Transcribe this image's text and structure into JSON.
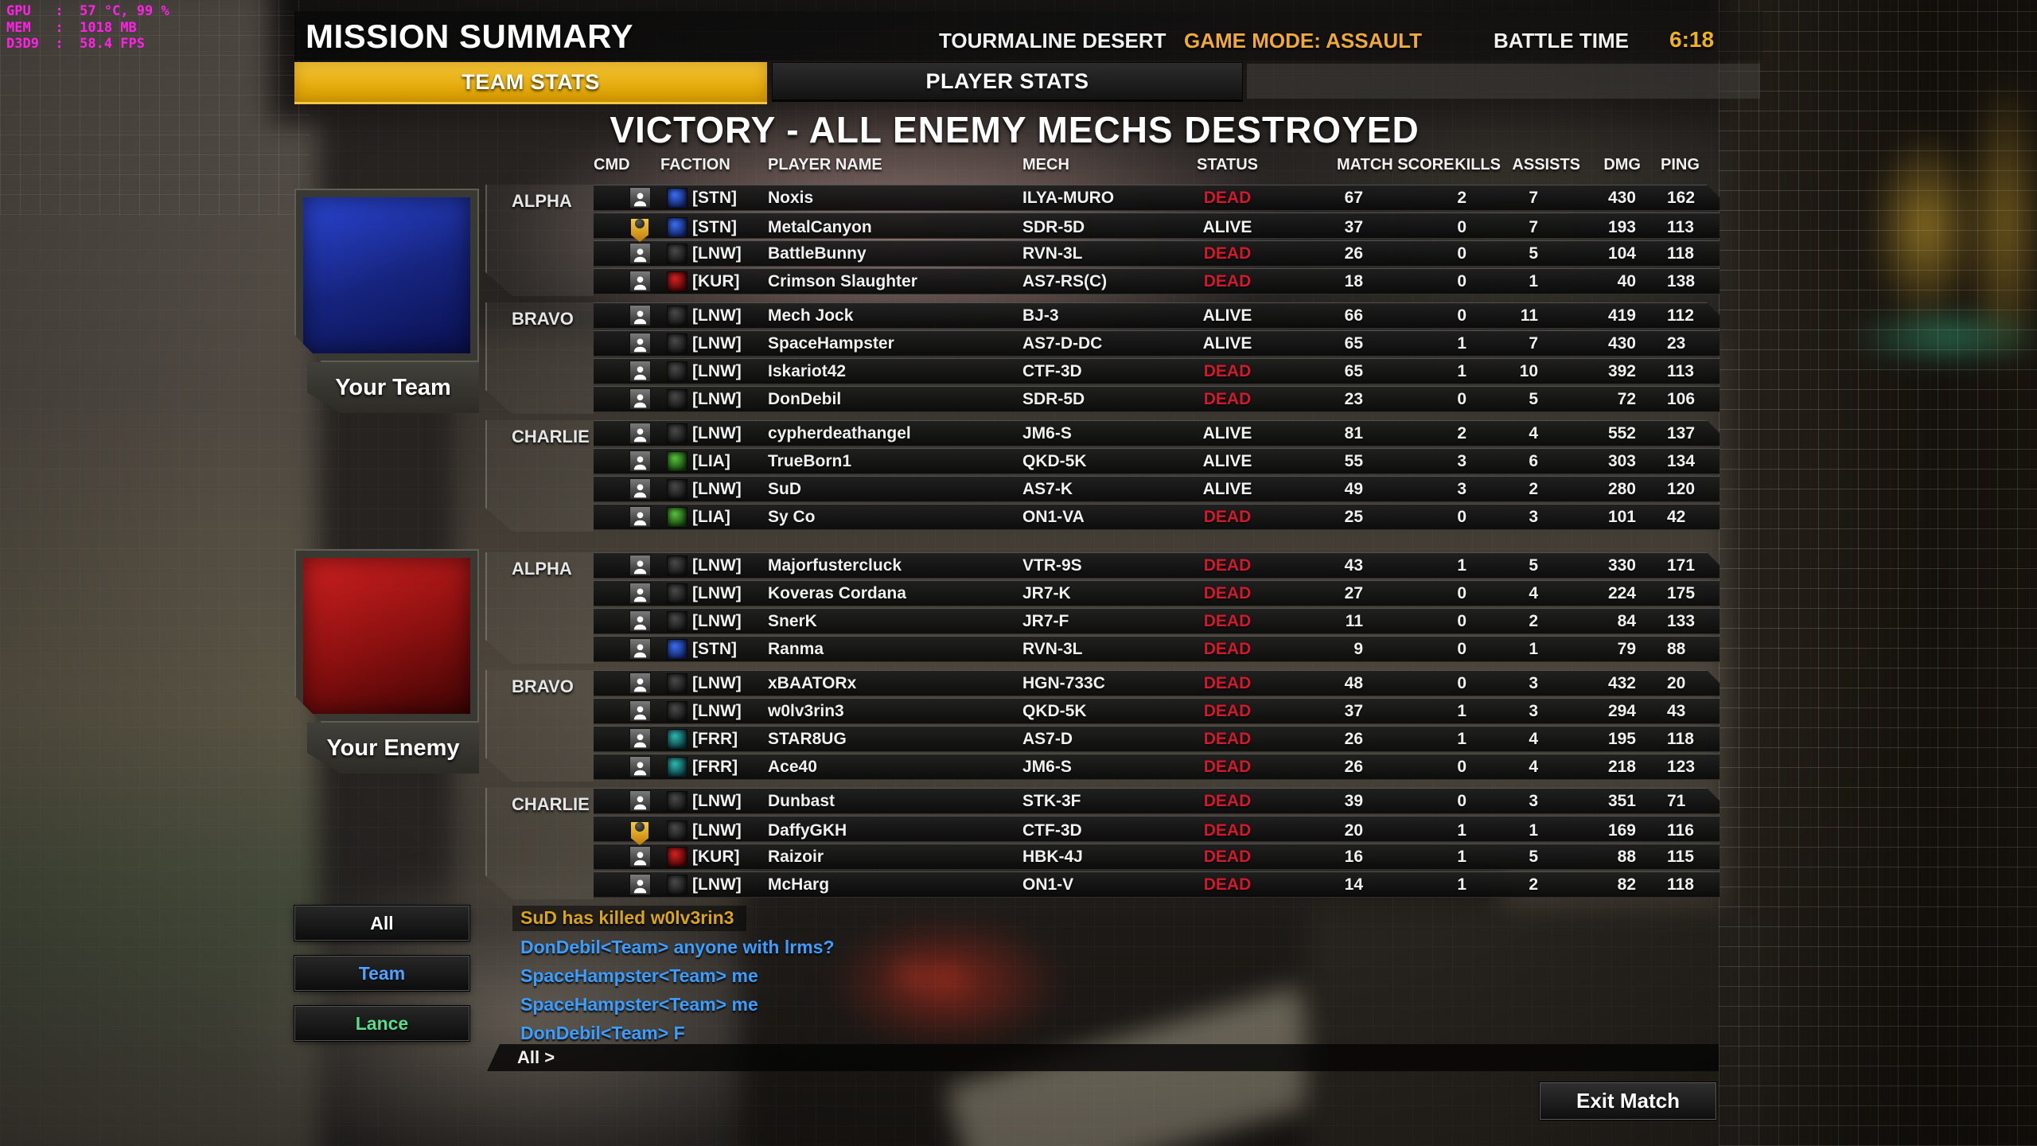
{
  "perf_overlay": {
    "lines": [
      "GPU   :  57 °C, 99 %",
      "MEM   :  1018 MB",
      "D3D9  :  58.4 FPS"
    ]
  },
  "header": {
    "title": "MISSION SUMMARY",
    "map": "TOURMALINE DESERT",
    "game_mode": "GAME MODE: ASSAULT",
    "battle_time_label": "BATTLE TIME",
    "battle_time": "6:18"
  },
  "tabs": {
    "team": "TEAM STATS",
    "player": "PLAYER STATS"
  },
  "result_banner": "VICTORY - ALL ENEMY MECHS DESTROYED",
  "columns": [
    "CMD",
    "FACTION",
    "PLAYER NAME",
    "MECH",
    "STATUS",
    "MATCH SCORE",
    "KILLS",
    "ASSISTS",
    "DMG",
    "PING"
  ],
  "teams": [
    {
      "label": "Your Team",
      "flag_colors": [
        "#2b46d6",
        "#16247e",
        "#0a1150"
      ],
      "lances": [
        {
          "name": "ALPHA",
          "players": [
            {
              "cmd": "player",
              "faction": "STN",
              "tag": "[STN]",
              "name": "Noxis",
              "mech": "ILYA-MURO",
              "status": "DEAD",
              "score": "67",
              "kills": "2",
              "assists": "7",
              "dmg": "430",
              "ping": "162"
            },
            {
              "cmd": "premium",
              "faction": "STN",
              "tag": "[STN]",
              "name": "MetalCanyon",
              "mech": "SDR-5D",
              "status": "ALIVE",
              "score": "37",
              "kills": "0",
              "assists": "7",
              "dmg": "193",
              "ping": "113"
            },
            {
              "cmd": "player",
              "faction": "LNW",
              "tag": "[LNW]",
              "name": "BattleBunny",
              "mech": "RVN-3L",
              "status": "DEAD",
              "score": "26",
              "kills": "0",
              "assists": "5",
              "dmg": "104",
              "ping": "118"
            },
            {
              "cmd": "player",
              "faction": "KUR",
              "tag": "[KUR]",
              "name": "Crimson Slaughter",
              "mech": "AS7-RS(C)",
              "status": "DEAD",
              "score": "18",
              "kills": "0",
              "assists": "1",
              "dmg": "40",
              "ping": "138"
            }
          ]
        },
        {
          "name": "BRAVO",
          "players": [
            {
              "cmd": "player",
              "faction": "LNW",
              "tag": "[LNW]",
              "name": "Mech Jock",
              "mech": "BJ-3",
              "status": "ALIVE",
              "score": "66",
              "kills": "0",
              "assists": "11",
              "dmg": "419",
              "ping": "112"
            },
            {
              "cmd": "player",
              "faction": "LNW",
              "tag": "[LNW]",
              "name": "SpaceHampster",
              "mech": "AS7-D-DC",
              "status": "ALIVE",
              "score": "65",
              "kills": "1",
              "assists": "7",
              "dmg": "430",
              "ping": "23"
            },
            {
              "cmd": "player",
              "faction": "LNW",
              "tag": "[LNW]",
              "name": "Iskariot42",
              "mech": "CTF-3D",
              "status": "DEAD",
              "score": "65",
              "kills": "1",
              "assists": "10",
              "dmg": "392",
              "ping": "113"
            },
            {
              "cmd": "player",
              "faction": "LNW",
              "tag": "[LNW]",
              "name": "DonDebil",
              "mech": "SDR-5D",
              "status": "DEAD",
              "score": "23",
              "kills": "0",
              "assists": "5",
              "dmg": "72",
              "ping": "106"
            }
          ]
        },
        {
          "name": "CHARLIE",
          "players": [
            {
              "cmd": "player",
              "faction": "LNW",
              "tag": "[LNW]",
              "name": "cypherdeathangel",
              "mech": "JM6-S",
              "status": "ALIVE",
              "score": "81",
              "kills": "2",
              "assists": "4",
              "dmg": "552",
              "ping": "137"
            },
            {
              "cmd": "player",
              "faction": "LIA",
              "tag": "[LIA]",
              "name": "TrueBorn1",
              "mech": "QKD-5K",
              "status": "ALIVE",
              "score": "55",
              "kills": "3",
              "assists": "6",
              "dmg": "303",
              "ping": "134"
            },
            {
              "cmd": "player",
              "faction": "LNW",
              "tag": "[LNW]",
              "name": "SuD",
              "mech": "AS7-K",
              "status": "ALIVE",
              "score": "49",
              "kills": "3",
              "assists": "2",
              "dmg": "280",
              "ping": "120"
            },
            {
              "cmd": "player",
              "faction": "LIA",
              "tag": "[LIA]",
              "name": "Sy Co",
              "mech": "ON1-VA",
              "status": "DEAD",
              "score": "25",
              "kills": "0",
              "assists": "3",
              "dmg": "101",
              "ping": "42"
            }
          ]
        }
      ]
    },
    {
      "label": "Your Enemy",
      "flag_colors": [
        "#cf2020",
        "#8d1010",
        "#400404"
      ],
      "lances": [
        {
          "name": "ALPHA",
          "players": [
            {
              "cmd": "player",
              "faction": "LNW",
              "tag": "[LNW]",
              "name": "Majorfustercluck",
              "mech": "VTR-9S",
              "status": "DEAD",
              "score": "43",
              "kills": "1",
              "assists": "5",
              "dmg": "330",
              "ping": "171"
            },
            {
              "cmd": "player",
              "faction": "LNW",
              "tag": "[LNW]",
              "name": "Koveras Cordana",
              "mech": "JR7-K",
              "status": "DEAD",
              "score": "27",
              "kills": "0",
              "assists": "4",
              "dmg": "224",
              "ping": "175"
            },
            {
              "cmd": "player",
              "faction": "LNW",
              "tag": "[LNW]",
              "name": "SnerK",
              "mech": "JR7-F",
              "status": "DEAD",
              "score": "11",
              "kills": "0",
              "assists": "2",
              "dmg": "84",
              "ping": "133"
            },
            {
              "cmd": "player",
              "faction": "STN",
              "tag": "[STN]",
              "name": "Ranma",
              "mech": "RVN-3L",
              "status": "DEAD",
              "score": "9",
              "kills": "0",
              "assists": "1",
              "dmg": "79",
              "ping": "88"
            }
          ]
        },
        {
          "name": "BRAVO",
          "players": [
            {
              "cmd": "player",
              "faction": "LNW",
              "tag": "[LNW]",
              "name": "xBAATORx",
              "mech": "HGN-733C",
              "status": "DEAD",
              "score": "48",
              "kills": "0",
              "assists": "3",
              "dmg": "432",
              "ping": "20"
            },
            {
              "cmd": "player",
              "faction": "LNW",
              "tag": "[LNW]",
              "name": "w0lv3rin3",
              "mech": "QKD-5K",
              "status": "DEAD",
              "score": "37",
              "kills": "1",
              "assists": "3",
              "dmg": "294",
              "ping": "43"
            },
            {
              "cmd": "player",
              "faction": "FRR",
              "tag": "[FRR]",
              "name": "STAR8UG",
              "mech": "AS7-D",
              "status": "DEAD",
              "score": "26",
              "kills": "1",
              "assists": "4",
              "dmg": "195",
              "ping": "118"
            },
            {
              "cmd": "player",
              "faction": "FRR",
              "tag": "[FRR]",
              "name": "Ace40",
              "mech": "JM6-S",
              "status": "DEAD",
              "score": "26",
              "kills": "0",
              "assists": "4",
              "dmg": "218",
              "ping": "123"
            }
          ]
        },
        {
          "name": "CHARLIE",
          "players": [
            {
              "cmd": "player",
              "faction": "LNW",
              "tag": "[LNW]",
              "name": "Dunbast",
              "mech": "STK-3F",
              "status": "DEAD",
              "score": "39",
              "kills": "0",
              "assists": "3",
              "dmg": "351",
              "ping": "71"
            },
            {
              "cmd": "premium",
              "faction": "LNW",
              "tag": "[LNW]",
              "name": "DaffyGKH",
              "mech": "CTF-3D",
              "status": "DEAD",
              "score": "20",
              "kills": "1",
              "assists": "1",
              "dmg": "169",
              "ping": "116"
            },
            {
              "cmd": "player",
              "faction": "KUR",
              "tag": "[KUR]",
              "name": "Raizoir",
              "mech": "HBK-4J",
              "status": "DEAD",
              "score": "16",
              "kills": "1",
              "assists": "5",
              "dmg": "88",
              "ping": "115"
            },
            {
              "cmd": "player",
              "faction": "LNW",
              "tag": "[LNW]",
              "name": "McHarg",
              "mech": "ON1-V",
              "status": "DEAD",
              "score": "14",
              "kills": "1",
              "assists": "2",
              "dmg": "82",
              "ping": "118"
            }
          ]
        }
      ]
    }
  ],
  "faction_colors": {
    "STN": [
      "#3a6ef0",
      "#101f5e"
    ],
    "LNW": [
      "#4a4a4a",
      "#141414"
    ],
    "KUR": [
      "#d42020",
      "#470505"
    ],
    "LIA": [
      "#58c23c",
      "#123c0b"
    ],
    "FRR": [
      "#2fb7b0",
      "#073337"
    ]
  },
  "chat": {
    "filters": [
      {
        "label": "All",
        "color": "#ffffff"
      },
      {
        "label": "Team",
        "color": "#4da3ff"
      },
      {
        "label": "Lance",
        "color": "#57de8c"
      }
    ],
    "messages": [
      {
        "type": "kill",
        "text": "SuD has killed w0lv3rin3"
      },
      {
        "type": "team",
        "text": "DonDebil<Team> anyone with lrms?"
      },
      {
        "type": "team",
        "text": "SpaceHampster<Team> me"
      },
      {
        "type": "team",
        "text": "SpaceHampster<Team> me"
      },
      {
        "type": "team",
        "text": "DonDebil<Team> F"
      }
    ],
    "colors": {
      "kill": "#d8a31d",
      "team": "#3b9eff"
    },
    "input_label": "All >"
  },
  "exit_button": "Exit Match",
  "colors": {
    "accent_gold": "#ecb31c",
    "accent_orange": "#efa93a",
    "time_gold": "#f0b11e",
    "dead_red": "#d11a2e",
    "perf_magenta": "#ff22e6"
  }
}
